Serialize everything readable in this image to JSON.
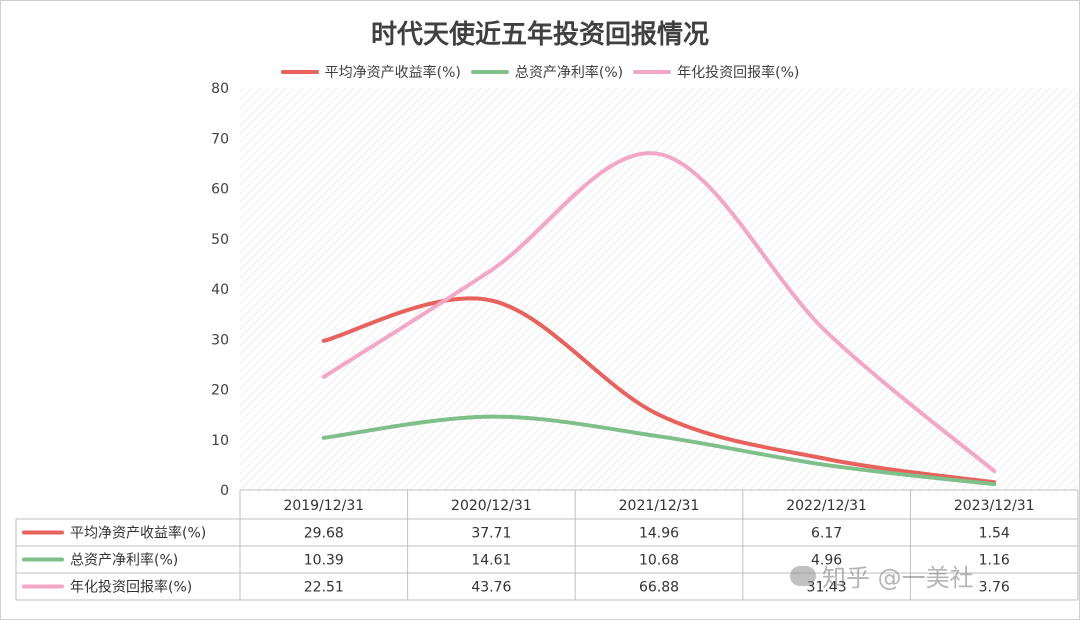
{
  "chart_data": {
    "type": "line",
    "title": "时代天使近五年投资回报情况",
    "categories": [
      "2019/12/31",
      "2020/12/31",
      "2021/12/31",
      "2022/12/31",
      "2023/12/31"
    ],
    "ylim": [
      0,
      80
    ],
    "yticks": [
      0,
      10,
      20,
      30,
      40,
      50,
      60,
      70,
      80
    ],
    "grid": true,
    "legend_position": "top",
    "series": [
      {
        "name": "平均净资产收益率(%)",
        "values": [
          29.68,
          37.71,
          14.96,
          6.17,
          1.54
        ],
        "color": "#e8615c",
        "display": [
          "29.68",
          "37.71",
          "14.96",
          "6.17",
          "1.54"
        ]
      },
      {
        "name": "总资产净利率(%)",
        "values": [
          10.39,
          14.61,
          10.68,
          4.96,
          1.16
        ],
        "color": "#7fbf8a",
        "display": [
          "10.39",
          "14.61",
          "10.68",
          "4.96",
          "1.16"
        ]
      },
      {
        "name": "年化投资回报率(%)",
        "values": [
          22.51,
          43.76,
          66.88,
          31.43,
          3.76
        ],
        "color": "#f4a6c6",
        "display": [
          "22.51",
          "43.76",
          "66.88",
          "31.43",
          "3.76"
        ]
      }
    ]
  },
  "watermark": {
    "text": "知乎 @一美社",
    "icon": "wechat-icon"
  }
}
